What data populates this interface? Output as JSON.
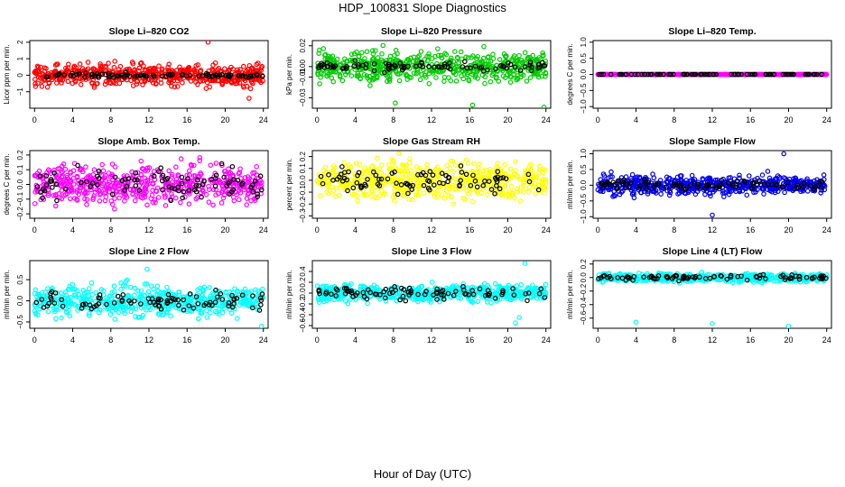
{
  "figure": {
    "title": "HDP_100831  Slope Diagnostics",
    "xlabel": "Hour of Day (UTC)"
  },
  "chart_data": [
    {
      "type": "scatter",
      "title": "Slope Li–820 CO2",
      "ylabel": "Licor ppm per min.",
      "xlim": [
        -0.5,
        24.5
      ],
      "ylim": [
        -2,
        2.1
      ],
      "xticks": [
        0,
        4,
        8,
        12,
        16,
        20,
        24
      ],
      "yticks": [
        -1,
        0,
        1,
        2
      ],
      "ytick_labels": [
        "−1",
        "0",
        "1",
        "2"
      ],
      "series": [
        {
          "color": "#ff0000",
          "spread": 0.55
        },
        {
          "color": "#000000",
          "spread": 0.12
        }
      ],
      "outliers": [
        {
          "x": 18.2,
          "y": 2.0,
          "color": "#ff0000"
        },
        {
          "x": 22.5,
          "y": -1.4,
          "color": "#ff0000"
        }
      ]
    },
    {
      "type": "scatter",
      "title": "Slope Li–820 Pressure",
      "ylabel": "kPa per min.",
      "xlim": [
        -0.5,
        24.5
      ],
      "ylim": [
        -0.04,
        0.025
      ],
      "xticks": [
        0,
        4,
        8,
        12,
        16,
        20,
        24
      ],
      "yticks": [
        -0.03,
        -0.01,
        0.0,
        0.02
      ],
      "ytick_labels": [
        "−0.03",
        "−0.01",
        "0.00",
        "0.02"
      ],
      "series": [
        {
          "color": "#00cc00",
          "spread": 0.012
        },
        {
          "color": "#000000",
          "spread": 0.004
        }
      ],
      "outliers": [
        {
          "x": 8.2,
          "y": -0.035,
          "color": "#00cc00"
        },
        {
          "x": 16.3,
          "y": -0.037,
          "color": "#00cc00"
        },
        {
          "x": 23.8,
          "y": -0.039,
          "color": "#00cc00"
        }
      ]
    },
    {
      "type": "scatter",
      "title": "Slope Li–820 Temp.",
      "ylabel": "degrees C per min.",
      "xlim": [
        -0.5,
        24.5
      ],
      "ylim": [
        -1.05,
        1.05
      ],
      "xticks": [
        0,
        4,
        8,
        12,
        16,
        20,
        24
      ],
      "yticks": [
        -1.0,
        -0.5,
        0.0,
        0.5,
        1.0
      ],
      "ytick_labels": [
        "−1.0",
        "−0.5",
        "0.0",
        "0.5",
        "1.0"
      ],
      "series": [
        {
          "color": "#ff00ff",
          "spread": 0.0
        },
        {
          "color": "#000000",
          "spread": 0.0
        }
      ],
      "outliers": []
    },
    {
      "type": "scatter",
      "title": "Slope Amb. Box Temp.",
      "ylabel": "degrees C per min.",
      "xlim": [
        -0.5,
        24.5
      ],
      "ylim": [
        -0.23,
        0.23
      ],
      "xticks": [
        0,
        4,
        8,
        12,
        16,
        20,
        24
      ],
      "yticks": [
        -0.2,
        -0.1,
        0.0,
        0.1,
        0.2
      ],
      "ytick_labels": [
        "−0.2",
        "−0.1",
        "0.0",
        "0.1",
        "0.2"
      ],
      "series": [
        {
          "color": "#ff00ff",
          "spread": 0.11
        },
        {
          "color": "#000000",
          "spread": 0.09
        }
      ],
      "outliers": []
    },
    {
      "type": "scatter",
      "title": "Slope Gas Stream RH",
      "ylabel": "percent per min.",
      "xlim": [
        -0.5,
        24.5
      ],
      "ylim": [
        -0.32,
        0.25
      ],
      "xticks": [
        0,
        4,
        8,
        12,
        16,
        20,
        24
      ],
      "yticks": [
        -0.3,
        -0.2,
        -0.1,
        0.0,
        0.1,
        0.2
      ],
      "ytick_labels": [
        "−0.3",
        "−0.2",
        "−0.1",
        "0.0",
        "0.1",
        "0.2"
      ],
      "series": [
        {
          "color": "#ffff00",
          "spread": 0.13
        },
        {
          "color": "#000000",
          "spread": 0.1
        }
      ],
      "outliers": []
    },
    {
      "type": "scatter",
      "title": "Slope Sample Flow",
      "ylabel": "ml/min per min.",
      "xlim": [
        -0.5,
        24.5
      ],
      "ylim": [
        -1.05,
        1.1
      ],
      "xticks": [
        0,
        4,
        8,
        12,
        16,
        20,
        24
      ],
      "yticks": [
        -1.0,
        -0.5,
        0.0,
        0.5,
        1.0
      ],
      "ytick_labels": [
        "−1.0",
        "−0.5",
        "0.0",
        "0.5",
        "1.0"
      ],
      "series": [
        {
          "color": "#0000ee",
          "spread": 0.25
        },
        {
          "color": "#000000",
          "spread": 0.15
        }
      ],
      "outliers": [
        {
          "x": 19.5,
          "y": 1.0,
          "color": "#0000ee"
        },
        {
          "x": 12.0,
          "y": -0.95,
          "color": "#0000ee"
        }
      ]
    },
    {
      "type": "scatter",
      "title": "Slope Line 2 Flow",
      "ylabel": "ml/min per min.",
      "xlim": [
        -0.5,
        24.5
      ],
      "ylim": [
        -0.65,
        0.95
      ],
      "xticks": [
        0,
        4,
        8,
        12,
        16,
        20,
        24
      ],
      "yticks": [
        -0.5,
        0.0,
        0.5
      ],
      "ytick_labels": [
        "−0.5",
        "0.0",
        "0.5"
      ],
      "series": [
        {
          "color": "#00ffff",
          "spread": 0.3
        },
        {
          "color": "#000000",
          "spread": 0.2
        }
      ],
      "outliers": [
        {
          "x": 23.8,
          "y": -0.6,
          "color": "#00ffff"
        },
        {
          "x": 11.8,
          "y": 0.75,
          "color": "#00ffff"
        }
      ]
    },
    {
      "type": "scatter",
      "title": "Slope Line 3 Flow",
      "ylabel": "ml/min per min.",
      "xlim": [
        -0.5,
        24.5
      ],
      "ylim": [
        -0.65,
        0.6
      ],
      "xticks": [
        0,
        4,
        8,
        12,
        16,
        20,
        24
      ],
      "yticks": [
        -0.6,
        -0.4,
        -0.2,
        0.0,
        0.2,
        0.4
      ],
      "ytick_labels": [
        "−0.6",
        "−0.4",
        "−0.2",
        "0.0",
        "0.2",
        "0.4"
      ],
      "series": [
        {
          "color": "#00ffff",
          "spread": 0.13
        },
        {
          "color": "#000000",
          "spread": 0.1
        }
      ],
      "outliers": [
        {
          "x": 21.8,
          "y": 0.55,
          "color": "#00ffff"
        },
        {
          "x": 20.8,
          "y": -0.55,
          "color": "#00ffff"
        },
        {
          "x": 21.2,
          "y": -0.45,
          "color": "#00ffff"
        }
      ]
    },
    {
      "type": "scatter",
      "title": "Slope Line 4 (LT) Flow",
      "ylabel": "ml/min per min.",
      "xlim": [
        -0.5,
        24.5
      ],
      "ylim": [
        -0.75,
        0.25
      ],
      "xticks": [
        0,
        4,
        8,
        12,
        16,
        20,
        24
      ],
      "yticks": [
        -0.6,
        -0.4,
        -0.2,
        0.0,
        0.2
      ],
      "ytick_labels": [
        "−0.6",
        "−0.4",
        "−0.2",
        "0.0",
        "0.2"
      ],
      "series": [
        {
          "color": "#00ffff",
          "spread": 0.05
        },
        {
          "color": "#000000",
          "spread": 0.04
        }
      ],
      "outliers": [
        {
          "x": 4.0,
          "y": -0.66,
          "color": "#00ffff"
        },
        {
          "x": 12.0,
          "y": -0.68,
          "color": "#00ffff"
        },
        {
          "x": 20.0,
          "y": -0.72,
          "color": "#00ffff"
        }
      ]
    }
  ]
}
